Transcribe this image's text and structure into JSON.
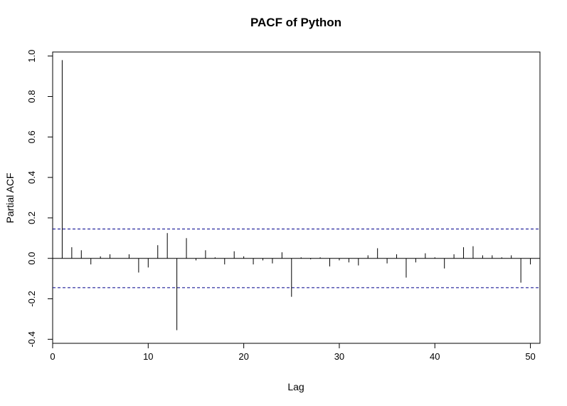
{
  "chart_data": {
    "type": "bar",
    "title": "PACF of Python",
    "xlabel": "Lag",
    "ylabel": "Partial ACF",
    "xlim": [
      0,
      51
    ],
    "ylim": [
      -0.42,
      1.02
    ],
    "x_ticks": [
      0,
      10,
      20,
      30,
      40,
      50
    ],
    "y_ticks": [
      -0.4,
      -0.2,
      0.0,
      0.2,
      0.4,
      0.6,
      0.8,
      1.0
    ],
    "x_tick_labels": [
      "0",
      "10",
      "20",
      "30",
      "40",
      "50"
    ],
    "y_tick_labels": [
      "-0.4",
      "-0.2",
      "0.0",
      "0.2",
      "0.4",
      "0.6",
      "0.8",
      "1.0"
    ],
    "confidence_bounds": [
      0.145,
      -0.145
    ],
    "lags": [
      1,
      2,
      3,
      4,
      5,
      6,
      7,
      8,
      9,
      10,
      11,
      12,
      13,
      14,
      15,
      16,
      17,
      18,
      19,
      20,
      21,
      22,
      23,
      24,
      25,
      26,
      27,
      28,
      29,
      30,
      31,
      32,
      33,
      34,
      35,
      36,
      37,
      38,
      39,
      40,
      41,
      42,
      43,
      44,
      45,
      46,
      47,
      48,
      49,
      50
    ],
    "values": [
      0.98,
      0.055,
      0.04,
      -0.03,
      0.01,
      0.02,
      0.0,
      0.02,
      -0.07,
      -0.045,
      0.065,
      0.125,
      -0.355,
      0.1,
      -0.01,
      0.04,
      0.005,
      -0.03,
      0.035,
      0.01,
      -0.03,
      -0.01,
      -0.025,
      0.03,
      -0.19,
      0.005,
      -0.005,
      0.005,
      -0.04,
      -0.01,
      -0.02,
      -0.035,
      0.015,
      0.05,
      -0.025,
      0.02,
      -0.095,
      -0.02,
      0.025,
      0.005,
      -0.05,
      0.02,
      0.055,
      0.06,
      0.015,
      0.015,
      0.005,
      0.015,
      -0.12,
      -0.03
    ],
    "grid": false,
    "colors": {
      "bars": "#000000",
      "bounds": "#00008b"
    }
  }
}
